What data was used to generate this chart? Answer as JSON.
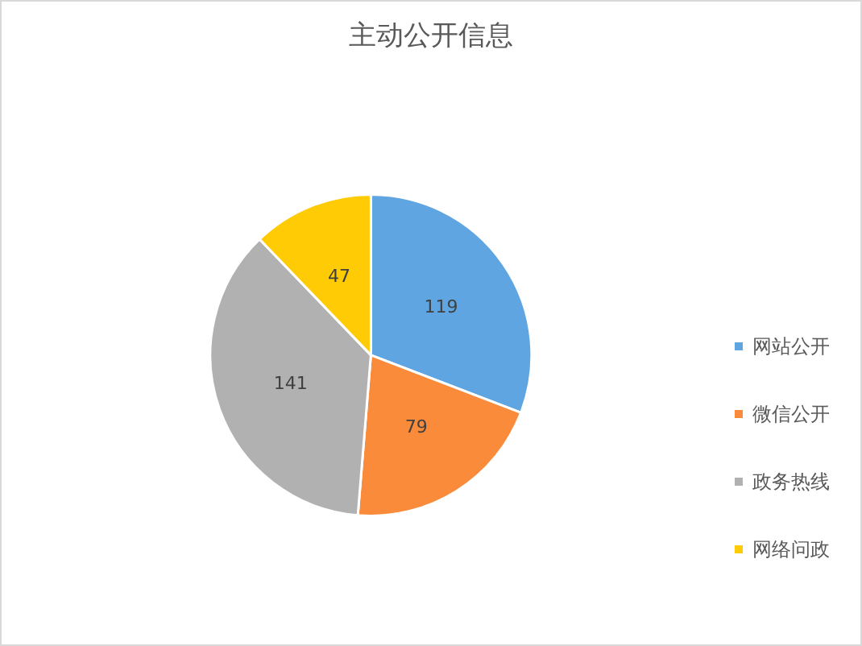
{
  "chart_data": {
    "type": "pie",
    "title": "主动公开信息",
    "categories": [
      "网站公开",
      "微信公开",
      "政务热线",
      "网络问政"
    ],
    "values": [
      119,
      79,
      141,
      47
    ],
    "colors": [
      "#5ea5e2",
      "#f98b3b",
      "#b1b1b1",
      "#ffcb05"
    ],
    "data_labels": true,
    "legend": "right"
  }
}
